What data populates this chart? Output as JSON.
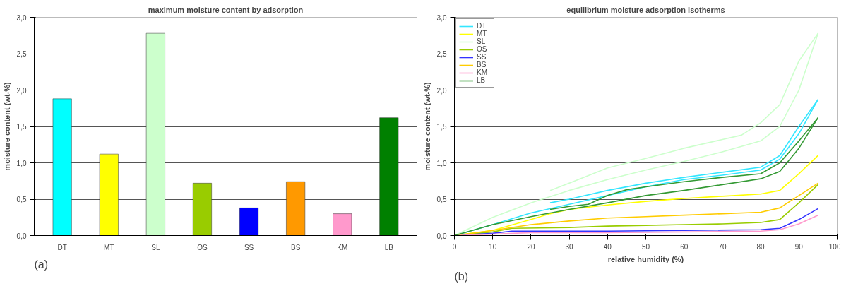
{
  "chart_data": [
    {
      "type": "bar",
      "title": "maximum moisture content by adsorption",
      "ylabel": "moisture content (wt-%)",
      "annotations": [
        "(a)"
      ],
      "categories": [
        "DT",
        "MT",
        "SL",
        "OS",
        "SS",
        "BS",
        "KM",
        "LB"
      ],
      "values": [
        1.88,
        1.12,
        2.78,
        0.72,
        0.38,
        0.74,
        0.3,
        1.62
      ],
      "colors": [
        "#00ffff",
        "#ffff00",
        "#ccffcc",
        "#99cc00",
        "#0000ff",
        "#ff9900",
        "#ff99cc",
        "#008000"
      ],
      "ylim": [
        0,
        3
      ],
      "yticks": [
        {
          "value": 0,
          "label": "0,0"
        },
        {
          "value": 0.5,
          "label": "0,5"
        },
        {
          "value": 1,
          "label": "1,0"
        },
        {
          "value": 1.5,
          "label": "1,5"
        },
        {
          "value": 2,
          "label": "2,0"
        },
        {
          "value": 2.5,
          "label": "2,5"
        },
        {
          "value": 3,
          "label": "3,0"
        }
      ],
      "grid": "y"
    },
    {
      "type": "line",
      "title": "equilibrium moisture adsorption isotherms",
      "xlabel": "relative humidity (%)",
      "ylabel": "moisture content (wt-%)",
      "annotations": [
        "(b)"
      ],
      "xlim": [
        0,
        100
      ],
      "xticks": [
        0,
        10,
        20,
        30,
        40,
        50,
        60,
        70,
        80,
        90,
        100
      ],
      "ylim": [
        0,
        3
      ],
      "yticks": [
        {
          "value": 0,
          "label": "0,0"
        },
        {
          "value": 0.5,
          "label": "0,5"
        },
        {
          "value": 1,
          "label": "1,0"
        },
        {
          "value": 1.5,
          "label": "1,5"
        },
        {
          "value": 2,
          "label": "2,0"
        },
        {
          "value": 2.5,
          "label": "2,5"
        },
        {
          "value": 3,
          "label": "3,0"
        }
      ],
      "grid": "y",
      "legend": "top left",
      "marker": "none",
      "line_style": "solid",
      "series": [
        {
          "name": "DT",
          "color": "#33e6ff",
          "x": [
            0,
            10,
            20,
            30,
            40,
            50,
            60,
            70,
            80,
            85,
            90,
            95
          ],
          "values": [
            0,
            0.15,
            0.31,
            0.43,
            0.55,
            0.67,
            0.77,
            0.83,
            0.9,
            1.05,
            1.4,
            1.87
          ]
        },
        {
          "name": "MT",
          "color": "#ffff00",
          "x": [
            0,
            10,
            20,
            25,
            30,
            40,
            50,
            60,
            70,
            80,
            85,
            90,
            95
          ],
          "values": [
            0,
            0.07,
            0.22,
            0.3,
            0.36,
            0.42,
            0.47,
            0.51,
            0.54,
            0.57,
            0.62,
            0.85,
            1.1
          ]
        },
        {
          "name": "SL",
          "color": "#ccffcc",
          "x": [
            0,
            10,
            20,
            30,
            40,
            50,
            60,
            70,
            80,
            85,
            90,
            95
          ],
          "values": [
            0,
            0.25,
            0.45,
            0.62,
            0.77,
            0.9,
            1.02,
            1.15,
            1.3,
            1.5,
            2.0,
            2.78
          ]
        },
        {
          "name": "OS",
          "color": "#99cc00",
          "x": [
            0,
            10,
            15,
            30,
            40,
            50,
            60,
            70,
            80,
            85,
            90,
            95
          ],
          "values": [
            0,
            0.05,
            0.1,
            0.11,
            0.13,
            0.14,
            0.15,
            0.16,
            0.18,
            0.22,
            0.45,
            0.7
          ]
        },
        {
          "name": "SS",
          "color": "#3333ff",
          "x": [
            0,
            10,
            15,
            40,
            60,
            80,
            85,
            90,
            95
          ],
          "values": [
            0,
            0.03,
            0.06,
            0.06,
            0.07,
            0.08,
            0.1,
            0.22,
            0.37
          ]
        },
        {
          "name": "BS",
          "color": "#ffcc00",
          "x": [
            0,
            10,
            20,
            30,
            40,
            50,
            60,
            70,
            80,
            85,
            90,
            95
          ],
          "values": [
            0,
            0.07,
            0.15,
            0.2,
            0.24,
            0.26,
            0.28,
            0.3,
            0.32,
            0.38,
            0.55,
            0.72
          ]
        },
        {
          "name": "KM",
          "color": "#ff99cc",
          "x": [
            0,
            10,
            20,
            40,
            60,
            80,
            85,
            90,
            95
          ],
          "values": [
            0,
            0.02,
            0.04,
            0.04,
            0.05,
            0.06,
            0.08,
            0.16,
            0.28
          ]
        },
        {
          "name": "LB",
          "color": "#339933",
          "x": [
            0,
            10,
            20,
            30,
            40,
            50,
            60,
            70,
            80,
            85,
            90,
            95
          ],
          "values": [
            0,
            0.15,
            0.26,
            0.36,
            0.45,
            0.55,
            0.62,
            0.7,
            0.78,
            0.88,
            1.2,
            1.62
          ]
        },
        {
          "color": "#33e6ff",
          "x": [
            25,
            30,
            40,
            50,
            60,
            70,
            80,
            85,
            90,
            95
          ],
          "values": [
            0.45,
            0.5,
            0.62,
            0.72,
            0.8,
            0.87,
            0.94,
            1.1,
            1.5,
            1.87
          ]
        },
        {
          "color": "#ccffcc",
          "x": [
            25,
            30,
            40,
            50,
            60,
            70,
            75,
            80,
            85,
            90,
            95
          ],
          "values": [
            0.62,
            0.72,
            0.93,
            1.06,
            1.2,
            1.32,
            1.38,
            1.55,
            1.8,
            2.4,
            2.78
          ]
        },
        {
          "color": "#339933",
          "x": [
            25,
            30,
            35,
            40,
            45,
            50,
            60,
            70,
            80,
            85,
            90,
            95
          ],
          "values": [
            0.36,
            0.4,
            0.43,
            0.55,
            0.63,
            0.67,
            0.74,
            0.8,
            0.85,
            1.0,
            1.3,
            1.62
          ]
        }
      ]
    }
  ]
}
